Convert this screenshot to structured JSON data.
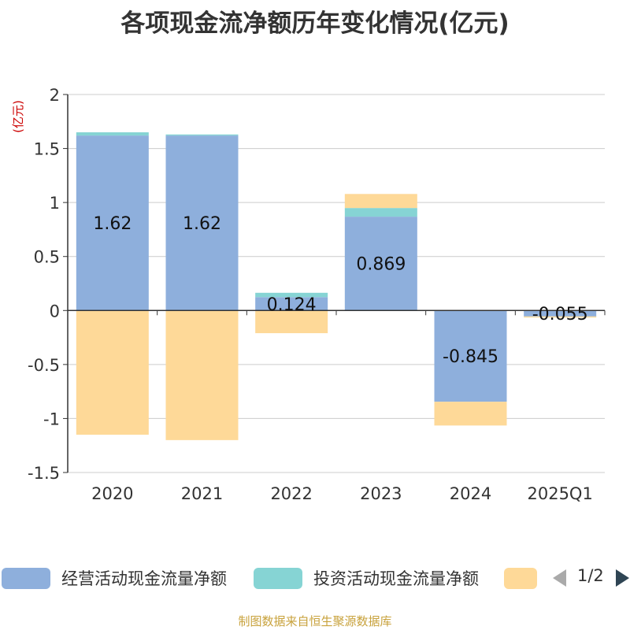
{
  "title": "各项现金流净额历年变化情况(亿元)",
  "source_text": "制图数据来自恒生聚源数据库",
  "legend_pager": "1/2",
  "colors": {
    "operating": "#8eafdc",
    "investing": "#86d4d4",
    "financing": "#fed998",
    "axis": "#333333",
    "grid": "#cccccc",
    "unit_label": "#cc0000"
  },
  "chart_data": {
    "type": "bar",
    "stacked": true,
    "categories": [
      "2020",
      "2021",
      "2022",
      "2023",
      "2024",
      "2025Q1"
    ],
    "ylabel": "(亿元)",
    "ylim": [
      -1.5,
      2
    ],
    "yticks": [
      "2",
      "1.5",
      "1",
      "0.5",
      "0",
      "-0.5",
      "-1",
      "-1.5"
    ],
    "grid": true,
    "legend_position": "bottom",
    "series": [
      {
        "name": "经营活动现金流量净额",
        "color": "#8eafdc",
        "values": [
          1.62,
          1.62,
          0.124,
          0.869,
          -0.845,
          -0.055
        ],
        "labels": [
          "1.62",
          "1.62",
          "0.124",
          "0.869",
          "-0.845",
          "-0.055"
        ]
      },
      {
        "name": "投资活动现金流量净额",
        "color": "#86d4d4",
        "values": [
          0.03,
          0.01,
          0.04,
          0.08,
          0.005,
          0.003
        ]
      },
      {
        "name": "",
        "color": "#fed998",
        "values": [
          -1.15,
          -1.2,
          -0.21,
          0.13,
          -0.22,
          -0.01
        ]
      }
    ]
  }
}
